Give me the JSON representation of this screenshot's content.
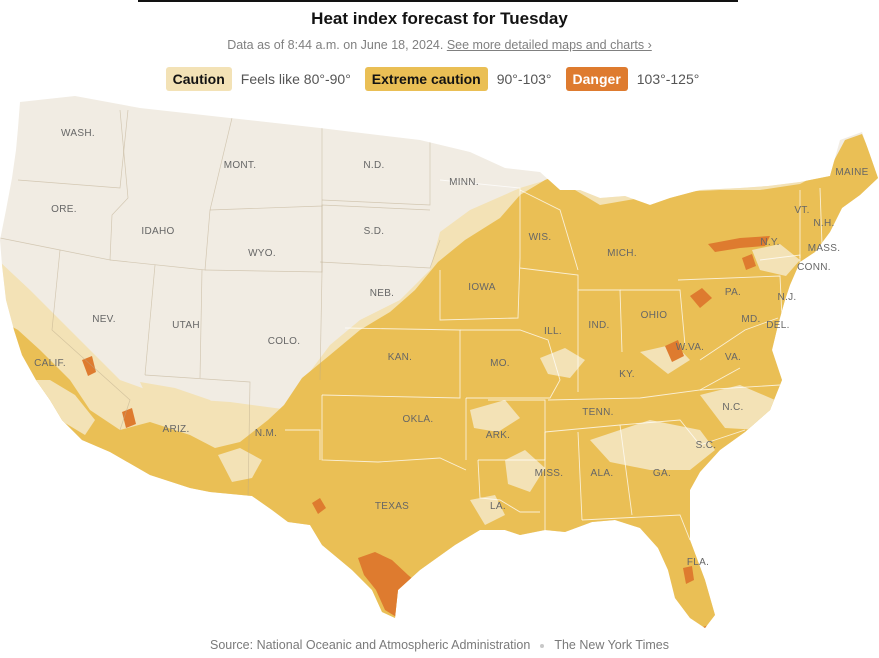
{
  "header": {
    "title": "Heat index forecast for Tuesday",
    "subtitle": "Data as of 8:44 a.m. on June 18, 2024.",
    "link": "See more detailed maps and charts ›"
  },
  "legend": [
    {
      "label": "Caution",
      "range": "Feels like 80°-90°",
      "color": "#f3e2b6",
      "text_color": "#121212"
    },
    {
      "label": "Extreme caution",
      "range": "90°-103°",
      "color": "#eabf55",
      "text_color": "#121212"
    },
    {
      "label": "Danger",
      "range": "103°-125°",
      "color": "#de7b2f",
      "text_color": "#ffffff"
    }
  ],
  "colors": {
    "no_alert": "#f1ece3",
    "caution": "#f3e2b6",
    "extreme_caution": "#eabf55",
    "danger": "#de7b2f",
    "borders": "#ffffff"
  },
  "map": {
    "state_labels": [
      "WASH.",
      "ORE.",
      "CALIF.",
      "IDAHO",
      "NEV.",
      "MONT.",
      "WYO.",
      "UTAH",
      "ARIZ.",
      "COLO.",
      "N.M.",
      "N.D.",
      "S.D.",
      "NEB.",
      "KAN.",
      "OKLA.",
      "TEXAS",
      "MINN.",
      "IOWA",
      "MO.",
      "ARK.",
      "LA.",
      "WIS.",
      "ILL.",
      "MICH.",
      "IND.",
      "OHIO",
      "KY.",
      "TENN.",
      "MISS.",
      "ALA.",
      "GA.",
      "FLA.",
      "S.C.",
      "N.C.",
      "VA.",
      "W.VA.",
      "PA.",
      "N.Y.",
      "MD.",
      "DEL.",
      "N.J.",
      "CONN.",
      "MASS.",
      "VT.",
      "N.H.",
      "MAINE"
    ]
  },
  "footer": {
    "source": "Source: National Oceanic and Atmospheric Administration",
    "credit": "The New York Times"
  }
}
